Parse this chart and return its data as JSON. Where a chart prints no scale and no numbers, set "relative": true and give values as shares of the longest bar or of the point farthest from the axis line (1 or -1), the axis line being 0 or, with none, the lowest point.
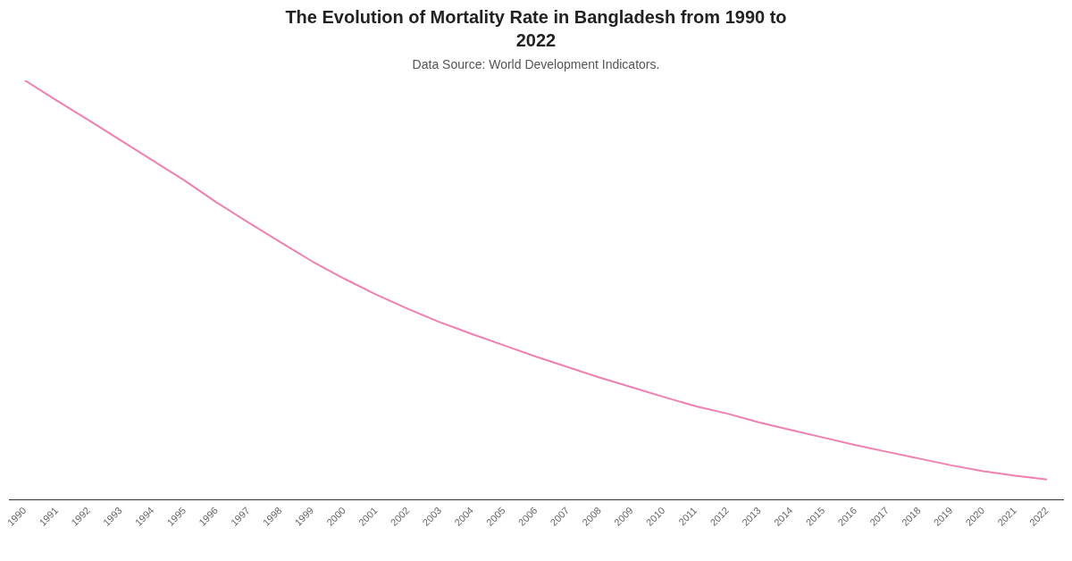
{
  "chart_data": {
    "type": "line",
    "title": "The Evolution of Mortality Rate in Bangladesh from 1990 to 2022",
    "subtitle": "Data Source: World Development Indicators.",
    "relative": true,
    "categories": [
      "1990",
      "1991",
      "1992",
      "1993",
      "1994",
      "1995",
      "1996",
      "1997",
      "1998",
      "1999",
      "2000",
      "2001",
      "2002",
      "2003",
      "2004",
      "2005",
      "2006",
      "2007",
      "2008",
      "2009",
      "2010",
      "2011",
      "2012",
      "2013",
      "2014",
      "2015",
      "2016",
      "2017",
      "2018",
      "2019",
      "2020",
      "2021",
      "2022"
    ],
    "series": [
      {
        "color": "#f07fb2",
        "values": [
          1.0,
          0.952,
          0.905,
          0.857,
          0.809,
          0.761,
          0.709,
          0.661,
          0.614,
          0.568,
          0.527,
          0.489,
          0.455,
          0.423,
          0.395,
          0.368,
          0.341,
          0.316,
          0.291,
          0.268,
          0.245,
          0.223,
          0.205,
          0.184,
          0.166,
          0.148,
          0.13,
          0.114,
          0.098,
          0.082,
          0.068,
          0.057,
          0.048
        ]
      }
    ],
    "grid": false,
    "legend": false,
    "marker": "none",
    "line_style": "solid"
  }
}
